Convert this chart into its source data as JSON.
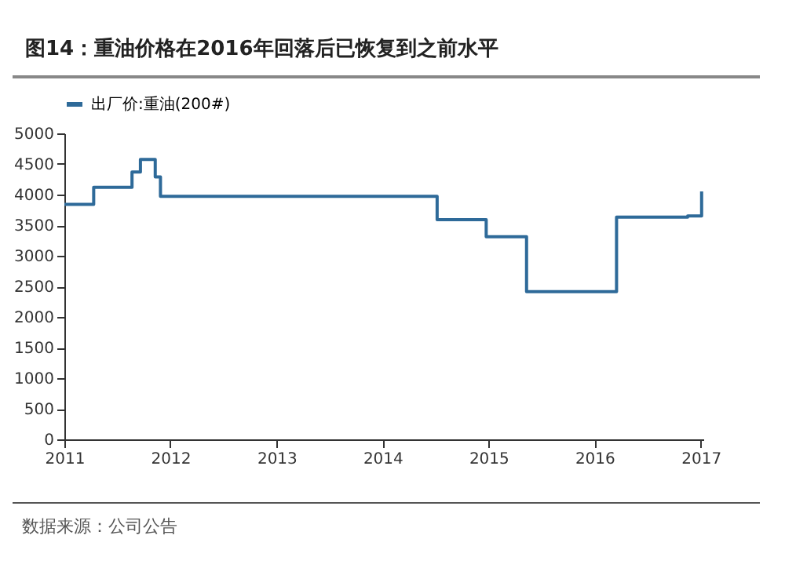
{
  "chart_data": {
    "type": "step",
    "title": "图14：重油价格在2016年回落后已恢复到之前水平",
    "x": [
      "2011-01-01",
      "2011-04-12",
      "2011-08-22",
      "2011-09-20",
      "2011-11-10",
      "2011-11-28",
      "2014-07-08",
      "2014-12-24",
      "2015-05-12",
      "2016-03-17",
      "2016-11-17",
      "2017-01-04"
    ],
    "series": [
      {
        "name": "出厂价:重油(200#)",
        "color": "#2e6a99",
        "values": [
          3840,
          4120,
          4370,
          4575,
          4290,
          3970,
          3590,
          3310,
          2415,
          3630,
          3650,
          4050
        ]
      }
    ],
    "xlim": [
      "2011-01-01",
      "2017-01-10"
    ],
    "xticks": [
      "2011",
      "2012",
      "2013",
      "2014",
      "2015",
      "2016",
      "2017"
    ],
    "ylim": [
      0,
      5000
    ],
    "yticks": [
      0,
      500,
      1000,
      1500,
      2000,
      2500,
      3000,
      3500,
      4000,
      4500,
      5000
    ],
    "grid": false,
    "legend": "top",
    "marker": "none",
    "line_style": "solid",
    "annotations": [
      "数据来源：公司公告"
    ]
  }
}
